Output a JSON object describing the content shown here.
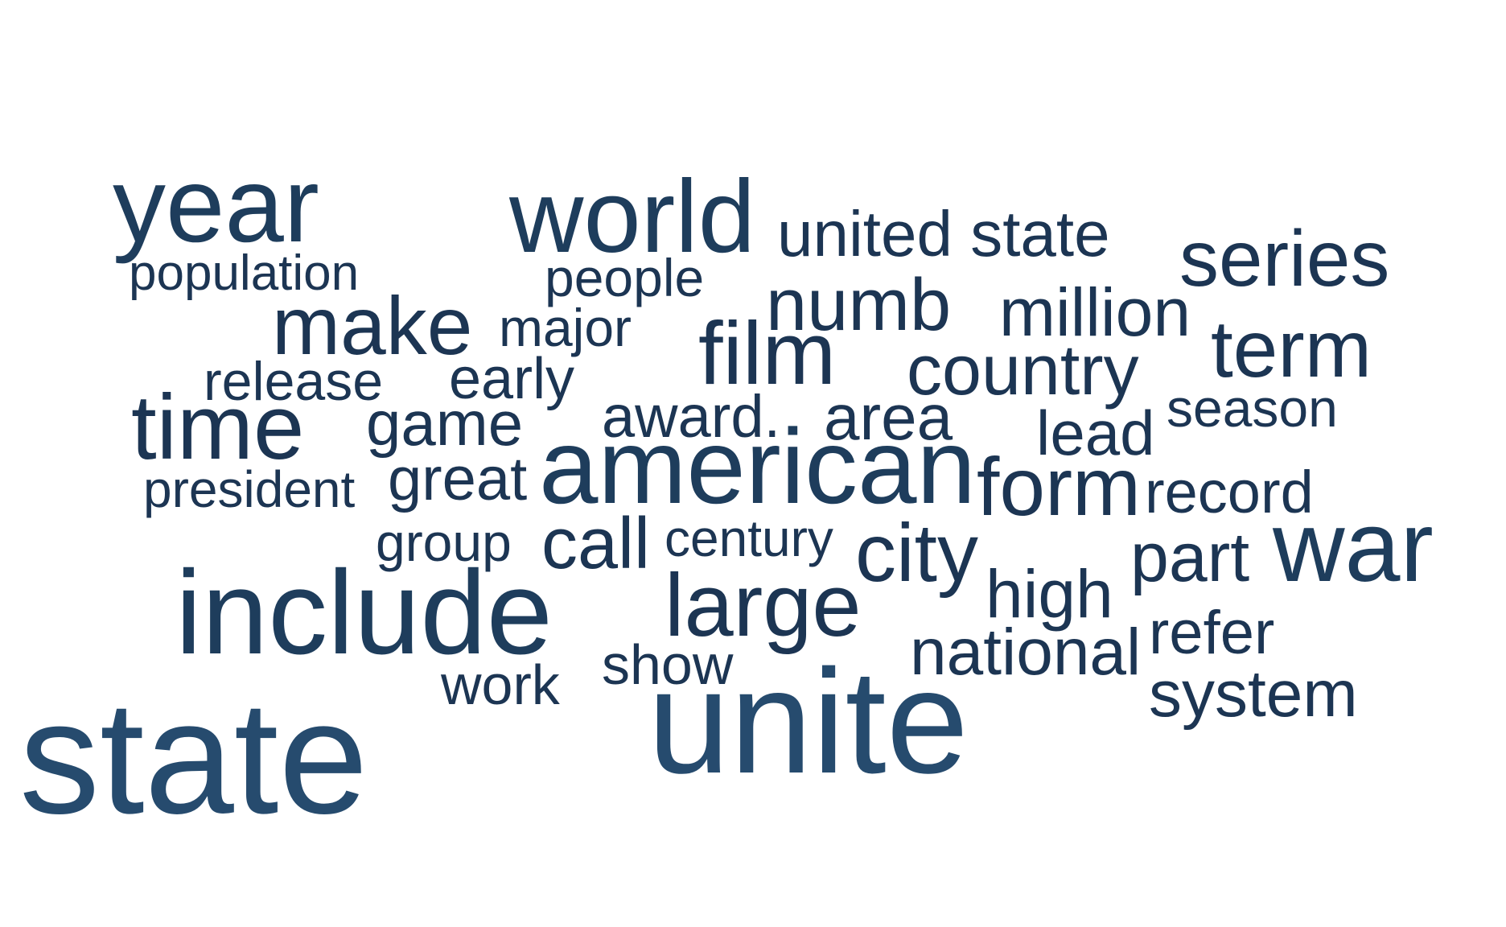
{
  "chart_data": {
    "type": "wordcloud",
    "title": "",
    "colors": {
      "largest": "#264b6e",
      "large": "#1e3d5c",
      "default": "#1c3553"
    },
    "words": [
      {
        "text": "state",
        "weight": 100
      },
      {
        "text": "unite",
        "weight": 92
      },
      {
        "text": "include",
        "weight": 74
      },
      {
        "text": "american",
        "weight": 66
      },
      {
        "text": "year",
        "weight": 66
      },
      {
        "text": "world",
        "weight": 64
      },
      {
        "text": "war",
        "weight": 62
      },
      {
        "text": "time",
        "weight": 57
      },
      {
        "text": "large",
        "weight": 55
      },
      {
        "text": "film",
        "weight": 55
      },
      {
        "text": "make",
        "weight": 51
      },
      {
        "text": "city",
        "weight": 51
      },
      {
        "text": "form",
        "weight": 51
      },
      {
        "text": "term",
        "weight": 50
      },
      {
        "text": "series",
        "weight": 49
      },
      {
        "text": "numb",
        "weight": 46
      },
      {
        "text": "call",
        "weight": 45
      },
      {
        "text": "country",
        "weight": 44
      },
      {
        "text": "part",
        "weight": 43
      },
      {
        "text": "million",
        "weight": 42
      },
      {
        "text": "high",
        "weight": 42
      },
      {
        "text": "national",
        "weight": 41
      },
      {
        "text": "system",
        "weight": 41
      },
      {
        "text": "area",
        "weight": 40
      },
      {
        "text": "united state",
        "weight": 40
      },
      {
        "text": "game",
        "weight": 39
      },
      {
        "text": "lead",
        "weight": 39
      },
      {
        "text": "great",
        "weight": 38
      },
      {
        "text": "refer",
        "weight": 38
      },
      {
        "text": "record",
        "weight": 37
      },
      {
        "text": "award.",
        "weight": 37
      },
      {
        "text": "early",
        "weight": 36
      },
      {
        "text": "work",
        "weight": 35
      },
      {
        "text": "show",
        "weight": 35
      },
      {
        "text": "release",
        "weight": 34
      },
      {
        "text": "major",
        "weight": 33
      },
      {
        "text": "people",
        "weight": 33
      },
      {
        "text": "season",
        "weight": 33
      },
      {
        "text": "group",
        "weight": 33
      },
      {
        "text": "century",
        "weight": 32
      },
      {
        "text": "president",
        "weight": 32
      },
      {
        "text": "population",
        "weight": 31
      }
    ]
  }
}
